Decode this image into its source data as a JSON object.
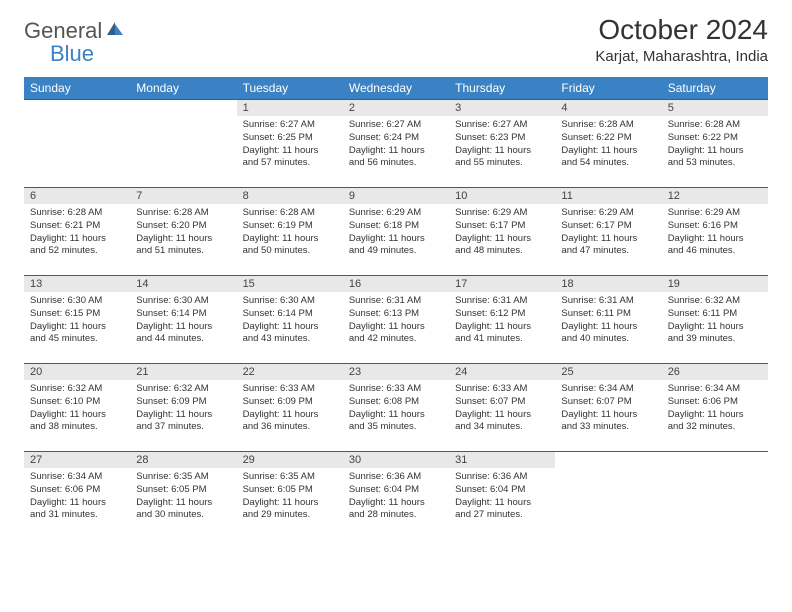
{
  "logo": {
    "text1": "General",
    "text2": "Blue"
  },
  "title": "October 2024",
  "location": "Karjat, Maharashtra, India",
  "colors": {
    "header_bg": "#3b82c4",
    "header_text": "#ffffff",
    "daynum_bg": "#e8e8e8",
    "row_border": "#2f5f8a",
    "logo_gray": "#555555",
    "logo_blue": "#3b82c4"
  },
  "weekdays": [
    "Sunday",
    "Monday",
    "Tuesday",
    "Wednesday",
    "Thursday",
    "Friday",
    "Saturday"
  ],
  "weeks": [
    [
      null,
      null,
      {
        "n": "1",
        "sr": "Sunrise: 6:27 AM",
        "ss": "Sunset: 6:25 PM",
        "dl": "Daylight: 11 hours and 57 minutes."
      },
      {
        "n": "2",
        "sr": "Sunrise: 6:27 AM",
        "ss": "Sunset: 6:24 PM",
        "dl": "Daylight: 11 hours and 56 minutes."
      },
      {
        "n": "3",
        "sr": "Sunrise: 6:27 AM",
        "ss": "Sunset: 6:23 PM",
        "dl": "Daylight: 11 hours and 55 minutes."
      },
      {
        "n": "4",
        "sr": "Sunrise: 6:28 AM",
        "ss": "Sunset: 6:22 PM",
        "dl": "Daylight: 11 hours and 54 minutes."
      },
      {
        "n": "5",
        "sr": "Sunrise: 6:28 AM",
        "ss": "Sunset: 6:22 PM",
        "dl": "Daylight: 11 hours and 53 minutes."
      }
    ],
    [
      {
        "n": "6",
        "sr": "Sunrise: 6:28 AM",
        "ss": "Sunset: 6:21 PM",
        "dl": "Daylight: 11 hours and 52 minutes."
      },
      {
        "n": "7",
        "sr": "Sunrise: 6:28 AM",
        "ss": "Sunset: 6:20 PM",
        "dl": "Daylight: 11 hours and 51 minutes."
      },
      {
        "n": "8",
        "sr": "Sunrise: 6:28 AM",
        "ss": "Sunset: 6:19 PM",
        "dl": "Daylight: 11 hours and 50 minutes."
      },
      {
        "n": "9",
        "sr": "Sunrise: 6:29 AM",
        "ss": "Sunset: 6:18 PM",
        "dl": "Daylight: 11 hours and 49 minutes."
      },
      {
        "n": "10",
        "sr": "Sunrise: 6:29 AM",
        "ss": "Sunset: 6:17 PM",
        "dl": "Daylight: 11 hours and 48 minutes."
      },
      {
        "n": "11",
        "sr": "Sunrise: 6:29 AM",
        "ss": "Sunset: 6:17 PM",
        "dl": "Daylight: 11 hours and 47 minutes."
      },
      {
        "n": "12",
        "sr": "Sunrise: 6:29 AM",
        "ss": "Sunset: 6:16 PM",
        "dl": "Daylight: 11 hours and 46 minutes."
      }
    ],
    [
      {
        "n": "13",
        "sr": "Sunrise: 6:30 AM",
        "ss": "Sunset: 6:15 PM",
        "dl": "Daylight: 11 hours and 45 minutes."
      },
      {
        "n": "14",
        "sr": "Sunrise: 6:30 AM",
        "ss": "Sunset: 6:14 PM",
        "dl": "Daylight: 11 hours and 44 minutes."
      },
      {
        "n": "15",
        "sr": "Sunrise: 6:30 AM",
        "ss": "Sunset: 6:14 PM",
        "dl": "Daylight: 11 hours and 43 minutes."
      },
      {
        "n": "16",
        "sr": "Sunrise: 6:31 AM",
        "ss": "Sunset: 6:13 PM",
        "dl": "Daylight: 11 hours and 42 minutes."
      },
      {
        "n": "17",
        "sr": "Sunrise: 6:31 AM",
        "ss": "Sunset: 6:12 PM",
        "dl": "Daylight: 11 hours and 41 minutes."
      },
      {
        "n": "18",
        "sr": "Sunrise: 6:31 AM",
        "ss": "Sunset: 6:11 PM",
        "dl": "Daylight: 11 hours and 40 minutes."
      },
      {
        "n": "19",
        "sr": "Sunrise: 6:32 AM",
        "ss": "Sunset: 6:11 PM",
        "dl": "Daylight: 11 hours and 39 minutes."
      }
    ],
    [
      {
        "n": "20",
        "sr": "Sunrise: 6:32 AM",
        "ss": "Sunset: 6:10 PM",
        "dl": "Daylight: 11 hours and 38 minutes."
      },
      {
        "n": "21",
        "sr": "Sunrise: 6:32 AM",
        "ss": "Sunset: 6:09 PM",
        "dl": "Daylight: 11 hours and 37 minutes."
      },
      {
        "n": "22",
        "sr": "Sunrise: 6:33 AM",
        "ss": "Sunset: 6:09 PM",
        "dl": "Daylight: 11 hours and 36 minutes."
      },
      {
        "n": "23",
        "sr": "Sunrise: 6:33 AM",
        "ss": "Sunset: 6:08 PM",
        "dl": "Daylight: 11 hours and 35 minutes."
      },
      {
        "n": "24",
        "sr": "Sunrise: 6:33 AM",
        "ss": "Sunset: 6:07 PM",
        "dl": "Daylight: 11 hours and 34 minutes."
      },
      {
        "n": "25",
        "sr": "Sunrise: 6:34 AM",
        "ss": "Sunset: 6:07 PM",
        "dl": "Daylight: 11 hours and 33 minutes."
      },
      {
        "n": "26",
        "sr": "Sunrise: 6:34 AM",
        "ss": "Sunset: 6:06 PM",
        "dl": "Daylight: 11 hours and 32 minutes."
      }
    ],
    [
      {
        "n": "27",
        "sr": "Sunrise: 6:34 AM",
        "ss": "Sunset: 6:06 PM",
        "dl": "Daylight: 11 hours and 31 minutes."
      },
      {
        "n": "28",
        "sr": "Sunrise: 6:35 AM",
        "ss": "Sunset: 6:05 PM",
        "dl": "Daylight: 11 hours and 30 minutes."
      },
      {
        "n": "29",
        "sr": "Sunrise: 6:35 AM",
        "ss": "Sunset: 6:05 PM",
        "dl": "Daylight: 11 hours and 29 minutes."
      },
      {
        "n": "30",
        "sr": "Sunrise: 6:36 AM",
        "ss": "Sunset: 6:04 PM",
        "dl": "Daylight: 11 hours and 28 minutes."
      },
      {
        "n": "31",
        "sr": "Sunrise: 6:36 AM",
        "ss": "Sunset: 6:04 PM",
        "dl": "Daylight: 11 hours and 27 minutes."
      },
      null,
      null
    ]
  ]
}
